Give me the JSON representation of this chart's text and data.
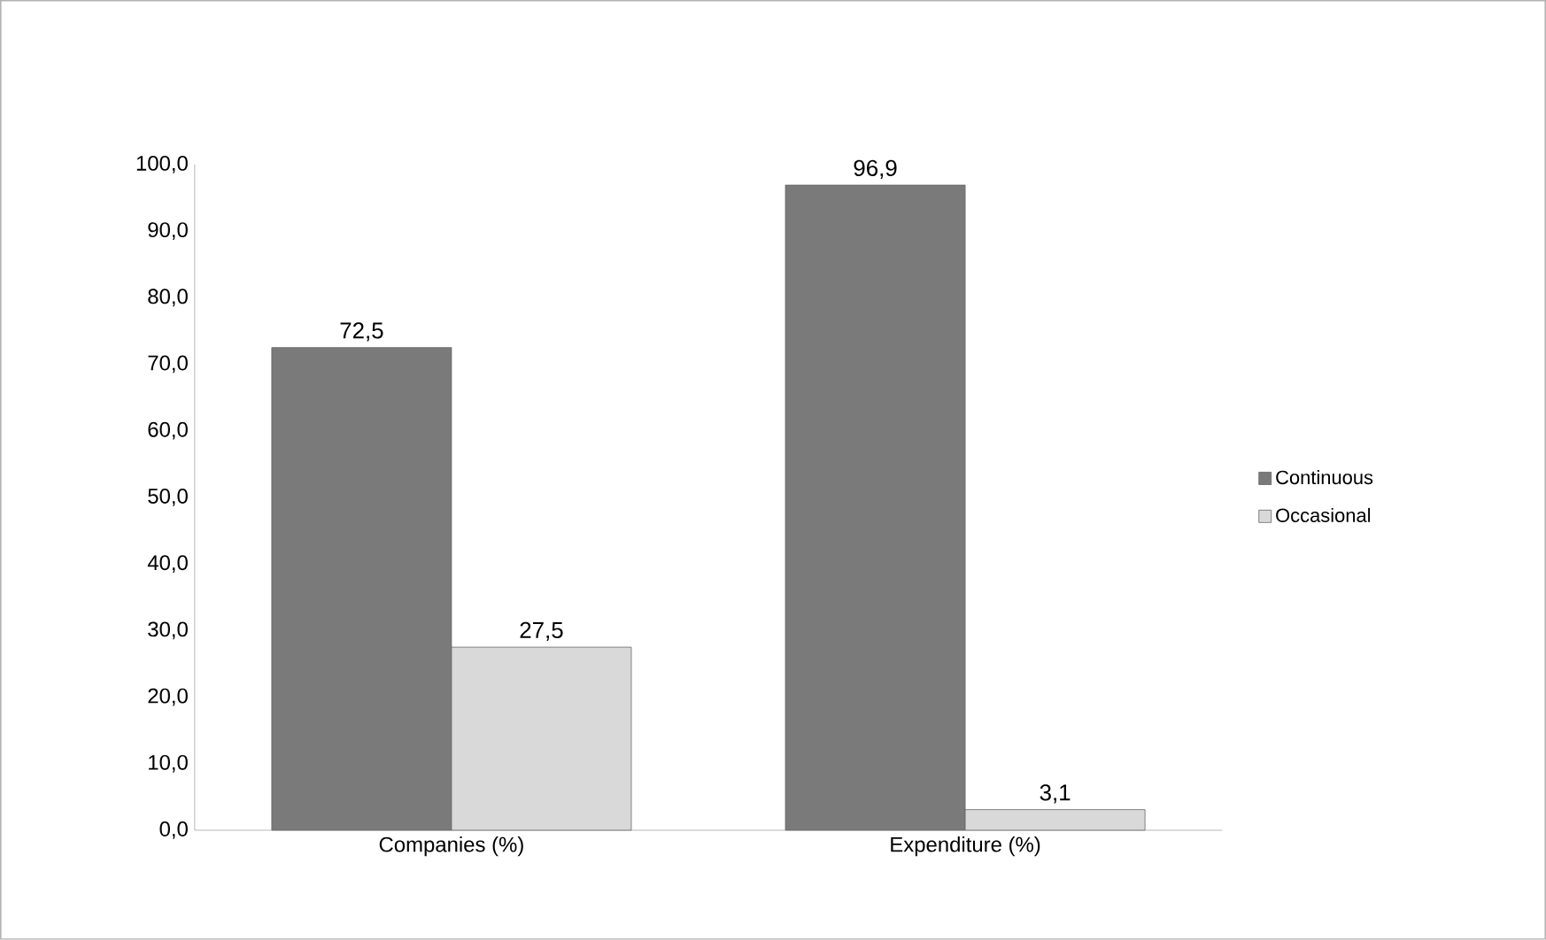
{
  "chart_data": {
    "type": "bar",
    "categories": [
      "Companies (%)",
      "Expenditure (%)"
    ],
    "series": [
      {
        "name": "Continuous",
        "color": "#7a7a7a",
        "values": [
          72.5,
          96.9
        ],
        "value_labels": [
          "72,5",
          "96,9"
        ]
      },
      {
        "name": "Occasional",
        "color": "#d9d9d9",
        "values": [
          27.5,
          3.1
        ],
        "value_labels": [
          "27,5",
          "3,1"
        ]
      }
    ],
    "ylim": [
      0,
      100
    ],
    "yticks": [
      {
        "value": 0,
        "label": "0,0"
      },
      {
        "value": 10,
        "label": "10,0"
      },
      {
        "value": 20,
        "label": "20,0"
      },
      {
        "value": 30,
        "label": "30,0"
      },
      {
        "value": 40,
        "label": "40,0"
      },
      {
        "value": 50,
        "label": "50,0"
      },
      {
        "value": 60,
        "label": "60,0"
      },
      {
        "value": 70,
        "label": "70,0"
      },
      {
        "value": 80,
        "label": "80,0"
      },
      {
        "value": 90,
        "label": "90,0"
      },
      {
        "value": 100,
        "label": "100,0"
      }
    ],
    "legend": "right",
    "grid": false
  }
}
